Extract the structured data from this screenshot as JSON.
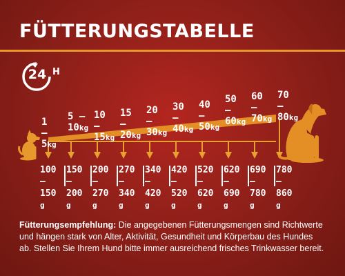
{
  "title": "FÜTTERUNGSTABELLE",
  "badge": {
    "number": "24",
    "suffix": "H",
    "icon": "24h-clock-icon"
  },
  "unit_kg": "kg",
  "unit_g": "g",
  "weights": [
    {
      "from": "1",
      "to": "5"
    },
    {
      "from": "5",
      "to": "10"
    },
    {
      "from": "10",
      "to": "15"
    },
    {
      "from": "15",
      "to": "20"
    },
    {
      "from": "20",
      "to": "30"
    },
    {
      "from": "30",
      "to": "40"
    },
    {
      "from": "40",
      "to": "50"
    },
    {
      "from": "50",
      "to": "60"
    },
    {
      "from": "60",
      "to": "70"
    },
    {
      "from": "70",
      "to": "80"
    }
  ],
  "amounts": [
    {
      "from": "100",
      "to": "150"
    },
    {
      "from": "150",
      "to": "200"
    },
    {
      "from": "200",
      "to": "270"
    },
    {
      "from": "270",
      "to": "340"
    },
    {
      "from": "340",
      "to": "420"
    },
    {
      "from": "420",
      "to": "520"
    },
    {
      "from": "520",
      "to": "620"
    },
    {
      "from": "620",
      "to": "690"
    },
    {
      "from": "690",
      "to": "780"
    },
    {
      "from": "780",
      "to": "860"
    }
  ],
  "note": {
    "label": "Fütterungsempfehlung:",
    "text": "Die angegebenen Fütterungsmengen sind Richtwerte und hängen stark von Alter, Aktivität, Gesundheit und Körperbau des Hundes ab. Stellen Sie Ihrem Hund bitte immer ausreichend frisches Trinkwasser bereit."
  },
  "colors": {
    "accent": "#e79a2b",
    "arrow": "#e8a030",
    "background": "#a4231c",
    "text": "#ffffff"
  },
  "icons": [
    "small-dog-icon",
    "large-dog-icon"
  ]
}
